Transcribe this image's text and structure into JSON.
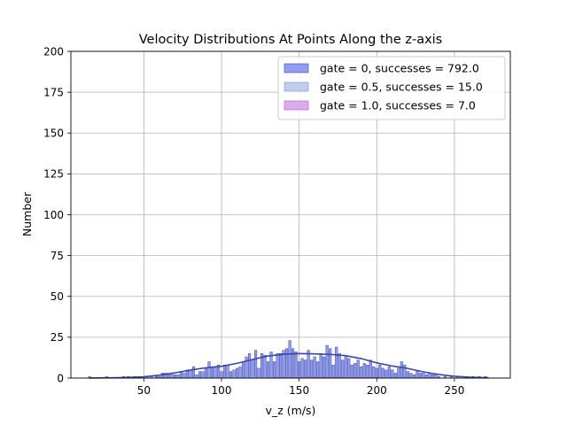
{
  "chart_data": {
    "type": "bar",
    "title": "Velocity Distributions At Points Along the z-axis",
    "xlabel": "v_z (m/s)",
    "ylabel": "Number",
    "xlim": [
      3,
      286
    ],
    "ylim": [
      0,
      200
    ],
    "xticks": [
      50,
      100,
      150,
      200,
      250
    ],
    "yticks": [
      0,
      25,
      50,
      75,
      100,
      125,
      150,
      175,
      200
    ],
    "grid": true,
    "legend_position": "top-right",
    "bin_width": 1.5,
    "series": [
      {
        "name": "gate = 0, successes = 792.0",
        "color": "#6f7cea",
        "edge_color": "#3a46a8",
        "bins": [
          [
            15,
            1
          ],
          [
            26,
            1
          ],
          [
            37,
            1
          ],
          [
            40,
            1
          ],
          [
            44,
            1
          ],
          [
            52,
            1
          ],
          [
            55,
            1
          ],
          [
            58,
            1
          ],
          [
            60,
            1
          ],
          [
            62,
            3
          ],
          [
            64,
            3
          ],
          [
            66,
            2
          ],
          [
            68,
            3
          ],
          [
            70,
            2
          ],
          [
            72,
            2
          ],
          [
            74,
            4
          ],
          [
            76,
            3
          ],
          [
            78,
            5
          ],
          [
            80,
            5
          ],
          [
            82,
            7
          ],
          [
            84,
            2
          ],
          [
            86,
            4
          ],
          [
            88,
            4
          ],
          [
            90,
            6
          ],
          [
            92,
            10
          ],
          [
            94,
            6
          ],
          [
            96,
            7
          ],
          [
            98,
            8
          ],
          [
            100,
            4
          ],
          [
            102,
            8
          ],
          [
            104,
            8
          ],
          [
            106,
            4
          ],
          [
            108,
            5
          ],
          [
            110,
            6
          ],
          [
            112,
            7
          ],
          [
            114,
            10
          ],
          [
            116,
            13
          ],
          [
            118,
            15
          ],
          [
            120,
            11
          ],
          [
            122,
            17
          ],
          [
            124,
            6
          ],
          [
            126,
            15
          ],
          [
            128,
            14
          ],
          [
            130,
            10
          ],
          [
            132,
            16
          ],
          [
            134,
            10
          ],
          [
            136,
            15
          ],
          [
            138,
            15
          ],
          [
            140,
            17
          ],
          [
            142,
            18
          ],
          [
            144,
            23
          ],
          [
            146,
            18
          ],
          [
            148,
            16
          ],
          [
            150,
            10
          ],
          [
            152,
            12
          ],
          [
            154,
            11
          ],
          [
            156,
            17
          ],
          [
            158,
            11
          ],
          [
            160,
            13
          ],
          [
            162,
            10
          ],
          [
            164,
            15
          ],
          [
            166,
            13
          ],
          [
            168,
            20
          ],
          [
            170,
            18
          ],
          [
            172,
            8
          ],
          [
            174,
            19
          ],
          [
            176,
            15
          ],
          [
            178,
            11
          ],
          [
            180,
            13
          ],
          [
            182,
            12
          ],
          [
            184,
            8
          ],
          [
            186,
            9
          ],
          [
            188,
            11
          ],
          [
            190,
            7
          ],
          [
            192,
            9
          ],
          [
            194,
            8
          ],
          [
            196,
            11
          ],
          [
            198,
            7
          ],
          [
            200,
            6
          ],
          [
            202,
            8
          ],
          [
            204,
            6
          ],
          [
            206,
            5
          ],
          [
            208,
            7
          ],
          [
            210,
            5
          ],
          [
            212,
            3
          ],
          [
            214,
            6
          ],
          [
            216,
            10
          ],
          [
            218,
            8
          ],
          [
            220,
            4
          ],
          [
            222,
            3
          ],
          [
            224,
            2
          ],
          [
            226,
            4
          ],
          [
            228,
            3
          ],
          [
            230,
            3
          ],
          [
            232,
            2
          ],
          [
            234,
            3
          ],
          [
            236,
            2
          ],
          [
            238,
            2
          ],
          [
            240,
            1
          ],
          [
            244,
            1
          ],
          [
            248,
            1
          ],
          [
            252,
            1
          ],
          [
            258,
            1
          ],
          [
            262,
            1
          ],
          [
            266,
            1
          ],
          [
            270,
            1
          ]
        ],
        "kde": [
          [
            15,
            0.05
          ],
          [
            30,
            0.2
          ],
          [
            40,
            0.4
          ],
          [
            50,
            0.8
          ],
          [
            60,
            1.8
          ],
          [
            70,
            3.2
          ],
          [
            80,
            4.9
          ],
          [
            90,
            6.3
          ],
          [
            100,
            7.2
          ],
          [
            110,
            9
          ],
          [
            120,
            11.4
          ],
          [
            130,
            13.5
          ],
          [
            140,
            14.6
          ],
          [
            150,
            15
          ],
          [
            160,
            14.8
          ],
          [
            170,
            14.5
          ],
          [
            180,
            13.7
          ],
          [
            190,
            11.9
          ],
          [
            200,
            9.3
          ],
          [
            210,
            7.4
          ],
          [
            220,
            5.9
          ],
          [
            230,
            3.8
          ],
          [
            240,
            2.2
          ],
          [
            250,
            1.1
          ],
          [
            260,
            0.5
          ],
          [
            272,
            0.15
          ]
        ]
      },
      {
        "name": "gate = 0.5, successes = 15.0",
        "color": "#a9bde9",
        "edge_color": "#7f97c9",
        "bins": [
          [
            120,
            1
          ],
          [
            150,
            1
          ],
          [
            180,
            1
          ]
        ],
        "kde": [
          [
            110,
            0.1
          ],
          [
            130,
            0.3
          ],
          [
            150,
            0.4
          ],
          [
            170,
            0.3
          ],
          [
            190,
            0.1
          ]
        ]
      },
      {
        "name": "gate = 1.0, successes = 7.0",
        "color": "#d08ee8",
        "edge_color": "#a05fbf",
        "bins": [
          [
            156,
            1
          ],
          [
            176,
            1
          ]
        ],
        "kde": [
          [
            130,
            0.05
          ],
          [
            150,
            0.3
          ],
          [
            165,
            0.45
          ],
          [
            180,
            0.3
          ],
          [
            200,
            0.05
          ]
        ]
      }
    ]
  }
}
